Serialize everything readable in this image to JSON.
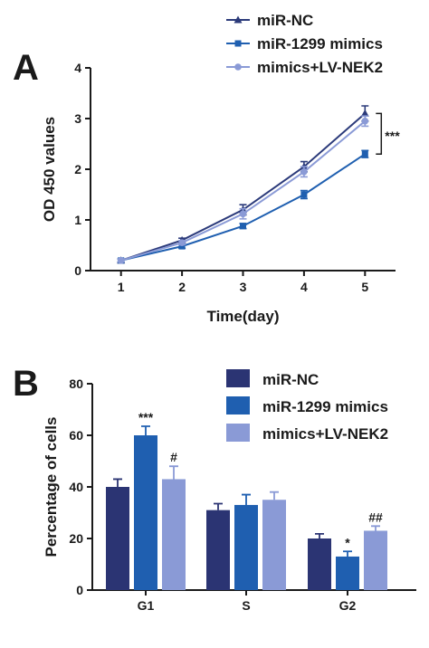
{
  "chart_data": [
    {
      "panel": "A",
      "type": "line",
      "xlabel": "Time(day)",
      "ylabel": "OD 450 values",
      "x": [
        1,
        2,
        3,
        4,
        5
      ],
      "xlim": [
        0.5,
        5.5
      ],
      "ylim": [
        0,
        4
      ],
      "xticks": [
        "1",
        "2",
        "3",
        "4",
        "5"
      ],
      "yticks": [
        "0",
        "1",
        "2",
        "3",
        "4"
      ],
      "grid": false,
      "legend": "top-right",
      "series": [
        {
          "name": "miR-NC",
          "values": [
            0.2,
            0.6,
            1.2,
            2.05,
            3.1
          ],
          "errors": [
            0.03,
            0.04,
            0.1,
            0.1,
            0.15
          ],
          "color": "#2b3a7a",
          "marker": "triangle"
        },
        {
          "name": "miR-1299 mimics",
          "values": [
            0.2,
            0.48,
            0.88,
            1.5,
            2.3
          ],
          "errors": [
            0.03,
            0.04,
            0.05,
            0.08,
            0.07
          ],
          "color": "#1f5fb0",
          "marker": "square"
        },
        {
          "name": "mimics+LV-NEK2",
          "values": [
            0.2,
            0.55,
            1.12,
            1.95,
            2.95
          ],
          "errors": [
            0.03,
            0.04,
            0.1,
            0.1,
            0.1
          ],
          "color": "#8a9ad6",
          "marker": "circle"
        }
      ],
      "annotations": [
        {
          "text": "***",
          "x": 5
        }
      ]
    },
    {
      "panel": "B",
      "type": "bar",
      "ylabel": "Percentage of cells",
      "categories": [
        "G1",
        "S",
        "G2"
      ],
      "ylim": [
        0,
        80
      ],
      "yticks": [
        "0",
        "20",
        "40",
        "60",
        "80"
      ],
      "grid": false,
      "legend": "top-right",
      "series": [
        {
          "name": "miR-NC",
          "values": [
            40,
            31,
            20
          ],
          "errors": [
            3,
            2.5,
            1.8
          ],
          "color": "#2b3473"
        },
        {
          "name": "miR-1299 mimics",
          "values": [
            60,
            33,
            13
          ],
          "errors": [
            3.5,
            4,
            2
          ],
          "color": "#1f5fb0"
        },
        {
          "name": "mimics+LV-NEK2",
          "values": [
            43,
            35,
            23
          ],
          "errors": [
            5,
            3,
            1.8
          ],
          "color": "#8a9ad6"
        }
      ],
      "annotations": [
        {
          "text": "***",
          "category": 0,
          "series": 1
        },
        {
          "text": "#",
          "category": 0,
          "series": 2
        },
        {
          "text": "*",
          "category": 2,
          "series": 1
        },
        {
          "text": "##",
          "category": 2,
          "series": 2
        }
      ]
    }
  ]
}
